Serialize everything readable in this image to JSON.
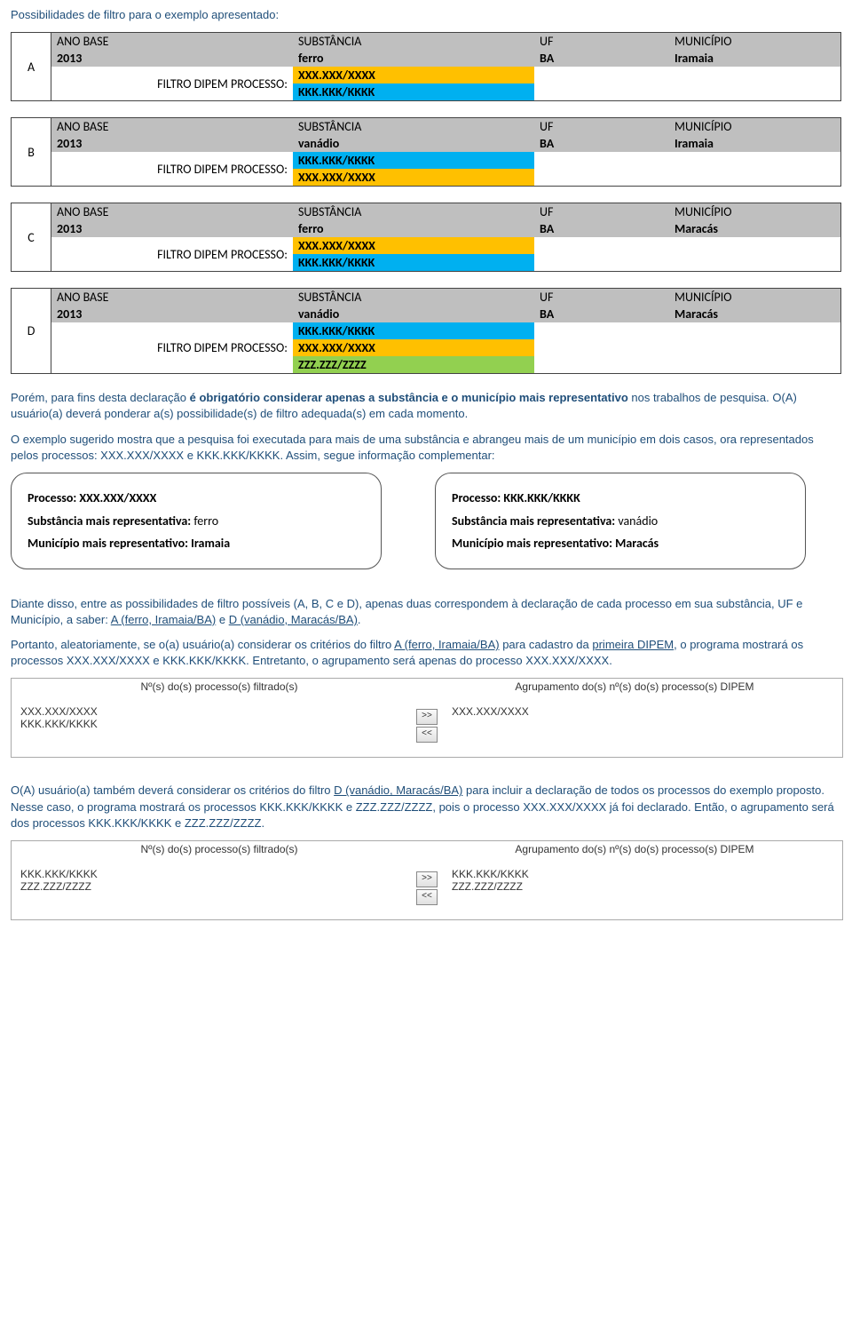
{
  "intro": "Possibilidades de filtro para o exemplo apresentado:",
  "colors": {
    "grey": "#bfbfbf",
    "orange": "#ffc000",
    "blue": "#00b0f0",
    "green": "#92d050",
    "body_text": "#1f4e79"
  },
  "headers": {
    "ano": "ANO BASE",
    "sub": "SUBSTÂNCIA",
    "uf": "UF",
    "mun": "MUNICÍPIO"
  },
  "filtro_label": "FILTRO DIPEM PROCESSO:",
  "cases": {
    "A": {
      "ano": "2013",
      "sub": "ferro",
      "uf": "BA",
      "mun": "Iramaia",
      "procs": [
        {
          "txt": "XXX.XXX/XXXX",
          "cls": "proc-orange"
        },
        {
          "txt": "KKK.KKK/KKKK",
          "cls": "proc-blue"
        }
      ]
    },
    "B": {
      "ano": "2013",
      "sub": "vanádio",
      "uf": "BA",
      "mun": "Iramaia",
      "procs": [
        {
          "txt": "KKK.KKK/KKKK",
          "cls": "proc-blue"
        },
        {
          "txt": "XXX.XXX/XXXX",
          "cls": "proc-orange"
        }
      ]
    },
    "C": {
      "ano": "2013",
      "sub": "ferro",
      "uf": "BA",
      "mun": "Maracás",
      "procs": [
        {
          "txt": "XXX.XXX/XXXX",
          "cls": "proc-orange"
        },
        {
          "txt": "KKK.KKK/KKKK",
          "cls": "proc-blue"
        }
      ]
    },
    "D": {
      "ano": "2013",
      "sub": "vanádio",
      "uf": "BA",
      "mun": "Maracás",
      "procs": [
        {
          "txt": "KKK.KKK/KKKK",
          "cls": "proc-blue"
        },
        {
          "txt": "XXX.XXX/XXXX",
          "cls": "proc-orange"
        },
        {
          "txt": "ZZZ.ZZZ/ZZZZ",
          "cls": "proc-green"
        }
      ]
    }
  },
  "para1a": "Porém, para fins desta declaração ",
  "para1b": "é obrigatório considerar apenas a substância e o município mais representativo",
  "para1c": " nos trabalhos de pesquisa. O(A) usuário(a) deverá ponderar a(s) possibilidade(s) de filtro adequada(s) em cada momento.",
  "para2": "O exemplo sugerido mostra que a pesquisa foi executada para mais de uma substância e abrangeu mais de um município em dois casos, ora representados pelos processos: XXX.XXX/XXXX e KKK.KKK/KKKK. Assim, segue informação complementar:",
  "box": {
    "proc_label": "Processo:",
    "sub_label": "Substância mais representativa:",
    "mun_label": "Município mais representativo:",
    "left": {
      "proc": "XXX.XXX/XXXX",
      "sub": "ferro",
      "mun": "Iramaia"
    },
    "right": {
      "proc": "KKK.KKK/KKKK",
      "sub": "vanádio",
      "mun": "Maracás"
    }
  },
  "para3a": "Diante disso, entre as possibilidades de filtro possíveis (A, B, C e D), apenas duas correspondem à declaração de cada processo em sua substância, UF e Município, a saber: ",
  "para3b": "A (ferro, Iramaia/BA)",
  "para3c": " e ",
  "para3d": "D (vanádio, Maracás/BA)",
  "para3e": ".",
  "para4a": "Portanto, aleatoriamente, se o(a) usuário(a) considerar os critérios do filtro ",
  "para4b": "A (ferro, Iramaia/BA)",
  "para4c": " para cadastro da ",
  "para4d": "primeira DIPEM",
  "para4e": ", o programa mostrará os processos XXX.XXX/XXXX e KKK.KKK/KKKK. Entretanto, o agrupamento será apenas do processo XXX.XXX/XXXX.",
  "agrup": {
    "title_left": "Nº(s) do(s) processo(s) filtrado(s)",
    "title_right": "Agrupamento do(s) nº(s) do(s) processo(s) DIPEM",
    "btn_r": ">>",
    "btn_l": "<<",
    "g1": {
      "left_l1": "XXX.XXX/XXXX",
      "left_l2": "KKK.KKK/KKKK",
      "right_l1": "XXX.XXX/XXXX",
      "right_l2": ""
    },
    "g2": {
      "left_l1": "KKK.KKK/KKKK",
      "left_l2": "ZZZ.ZZZ/ZZZZ",
      "right_l1": "KKK.KKK/KKKK",
      "right_l2": "ZZZ.ZZZ/ZZZZ"
    }
  },
  "para5a": "O(A) usuário(a) também deverá considerar os critérios do filtro ",
  "para5b": "D (vanádio, Maracás/BA)",
  "para5c": " para incluir a declaração de todos os processos do exemplo proposto. Nesse caso, o programa mostrará os processos KKK.KKK/KKKK e ZZZ.ZZZ/ZZZZ, pois o processo XXX.XXX/XXXX já foi declarado. Então, o agrupamento será dos processos KKK.KKK/KKKK e ZZZ.ZZZ/ZZZZ."
}
